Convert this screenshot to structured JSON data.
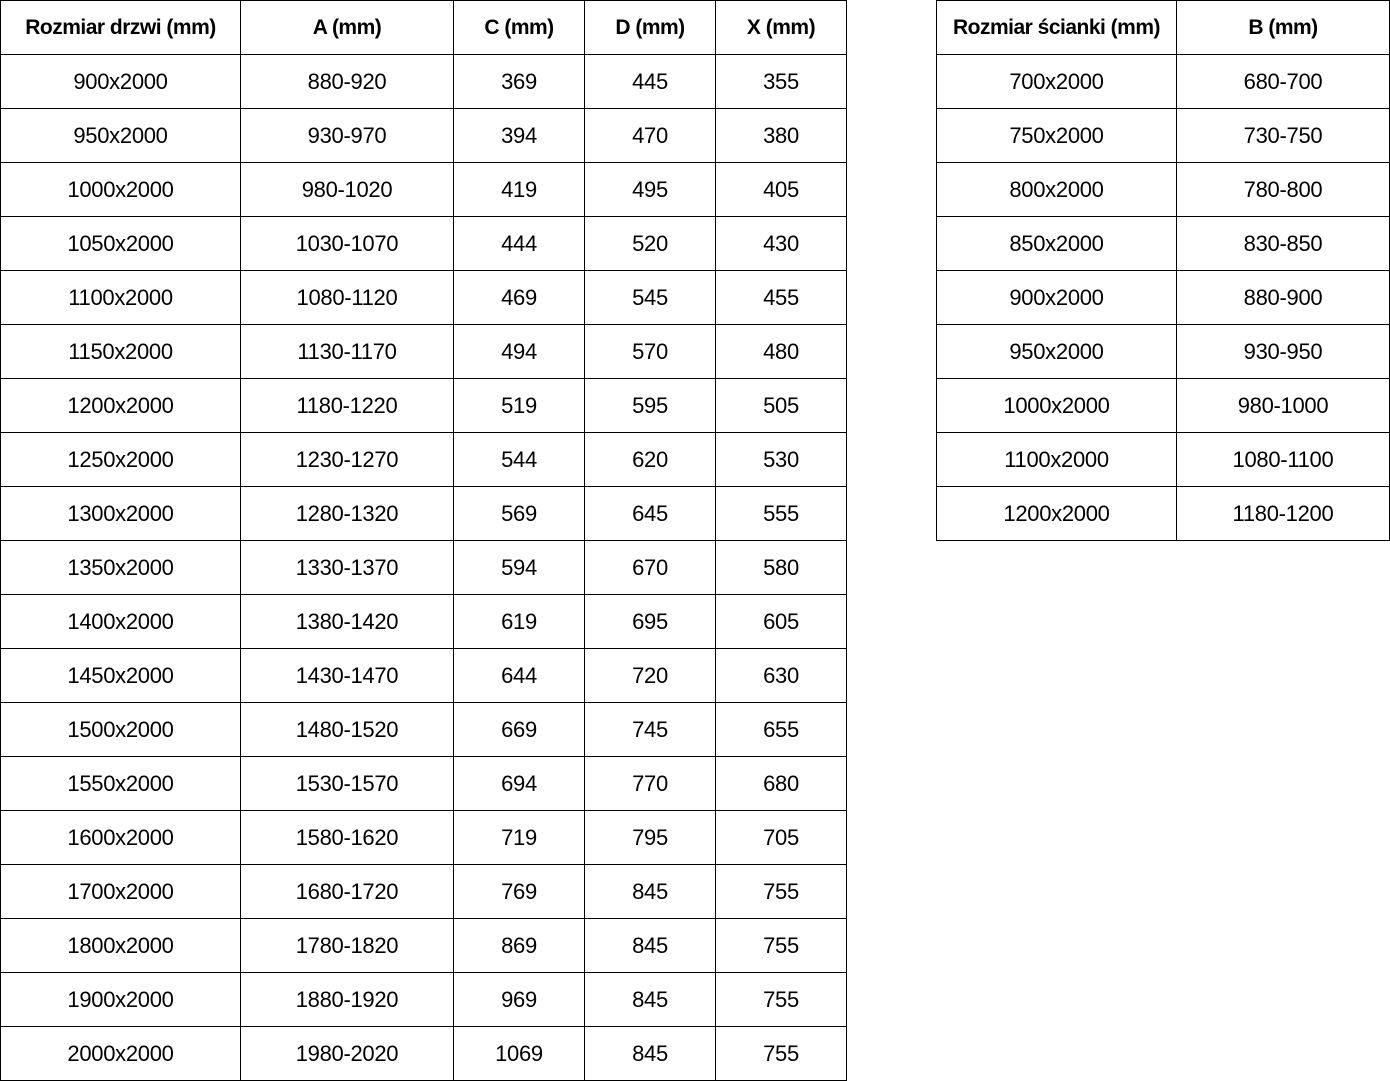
{
  "door_table": {
    "headers": [
      "Rozmiar drzwi (mm)",
      "A (mm)",
      "C (mm)",
      "D (mm)",
      "X (mm)"
    ],
    "rows": [
      [
        "900x2000",
        "880-920",
        "369",
        "445",
        "355"
      ],
      [
        "950x2000",
        "930-970",
        "394",
        "470",
        "380"
      ],
      [
        "1000x2000",
        "980-1020",
        "419",
        "495",
        "405"
      ],
      [
        "1050x2000",
        "1030-1070",
        "444",
        "520",
        "430"
      ],
      [
        "1100x2000",
        "1080-1120",
        "469",
        "545",
        "455"
      ],
      [
        "1150x2000",
        "1130-1170",
        "494",
        "570",
        "480"
      ],
      [
        "1200x2000",
        "1180-1220",
        "519",
        "595",
        "505"
      ],
      [
        "1250x2000",
        "1230-1270",
        "544",
        "620",
        "530"
      ],
      [
        "1300x2000",
        "1280-1320",
        "569",
        "645",
        "555"
      ],
      [
        "1350x2000",
        "1330-1370",
        "594",
        "670",
        "580"
      ],
      [
        "1400x2000",
        "1380-1420",
        "619",
        "695",
        "605"
      ],
      [
        "1450x2000",
        "1430-1470",
        "644",
        "720",
        "630"
      ],
      [
        "1500x2000",
        "1480-1520",
        "669",
        "745",
        "655"
      ],
      [
        "1550x2000",
        "1530-1570",
        "694",
        "770",
        "680"
      ],
      [
        "1600x2000",
        "1580-1620",
        "719",
        "795",
        "705"
      ],
      [
        "1700x2000",
        "1680-1720",
        "769",
        "845",
        "755"
      ],
      [
        "1800x2000",
        "1780-1820",
        "869",
        "845",
        "755"
      ],
      [
        "1900x2000",
        "1880-1920",
        "969",
        "845",
        "755"
      ],
      [
        "2000x2000",
        "1980-2020",
        "1069",
        "845",
        "755"
      ]
    ]
  },
  "wall_table": {
    "headers": [
      "Rozmiar ścianki (mm)",
      "B (mm)"
    ],
    "rows": [
      [
        "700x2000",
        "680-700"
      ],
      [
        "750x2000",
        "730-750"
      ],
      [
        "800x2000",
        "780-800"
      ],
      [
        "850x2000",
        "830-850"
      ],
      [
        "900x2000",
        "880-900"
      ],
      [
        "950x2000",
        "930-950"
      ],
      [
        "1000x2000",
        "980-1000"
      ],
      [
        "1100x2000",
        "1080-1100"
      ],
      [
        "1200x2000",
        "1180-1200"
      ]
    ]
  }
}
